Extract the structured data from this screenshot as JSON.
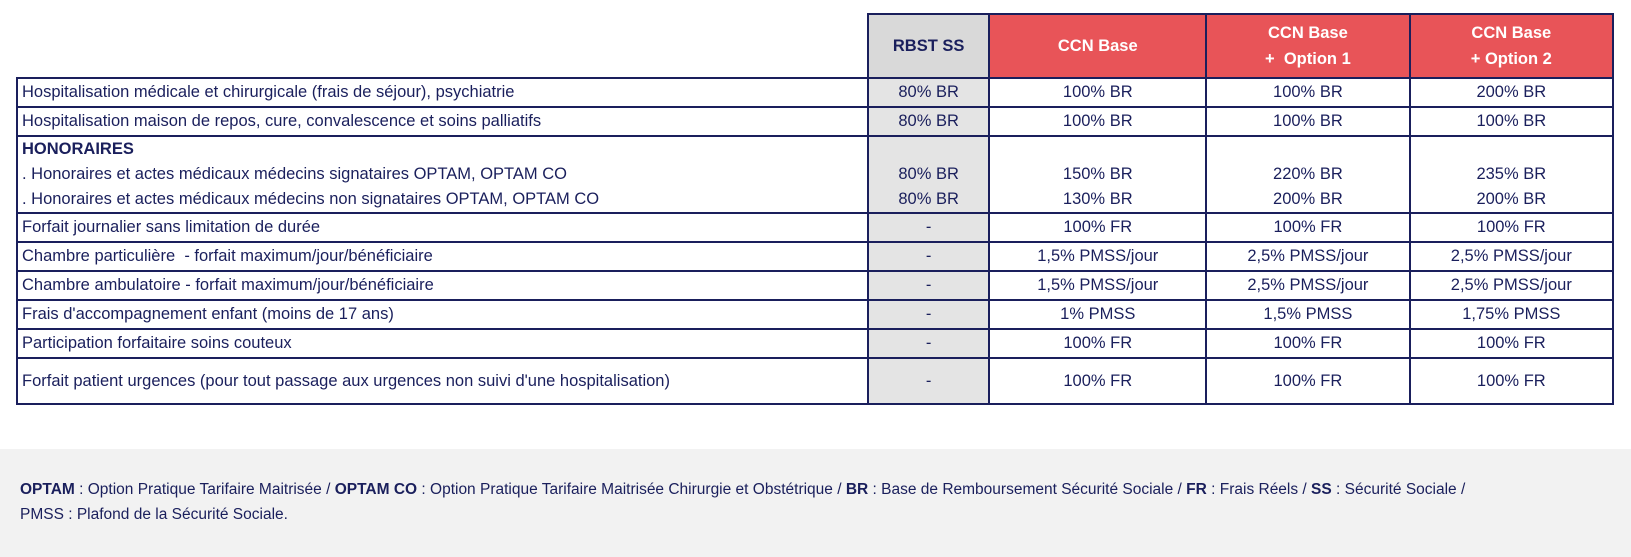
{
  "headers": {
    "rbst": "RBST SS",
    "ccn_base": "CCN Base",
    "ccn_opt1_line1": "CCN Base",
    "ccn_opt1_line2": "+  Option 1",
    "ccn_opt2_line1": "CCN Base",
    "ccn_opt2_line2": "+ Option 2"
  },
  "rows": [
    {
      "label": "Hospitalisation médicale et chirurgicale (frais de séjour), psychiatrie",
      "rbst": "80% BR",
      "base": "100% BR",
      "opt1": "100% BR",
      "opt2": "200% BR"
    },
    {
      "label": "Hospitalisation maison de repos, cure, convalescence et soins palliatifs",
      "rbst": "80% BR",
      "base": "100% BR",
      "opt1": "100% BR",
      "opt2": "100% BR"
    }
  ],
  "honoraires": {
    "title": "HONORAIRES",
    "line1": {
      "label": ". Honoraires et actes médicaux médecins signataires OPTAM, OPTAM CO",
      "rbst": "80% BR",
      "base": "150% BR",
      "opt1": "220% BR",
      "opt2": "235% BR"
    },
    "line2": {
      "label": ". Honoraires et actes médicaux médecins non signataires OPTAM, OPTAM CO",
      "rbst": "80% BR",
      "base": "130% BR",
      "opt1": "200% BR",
      "opt2": "200% BR"
    }
  },
  "rows2": [
    {
      "label": "Forfait journalier sans limitation de durée",
      "rbst": "-",
      "base": "100% FR",
      "opt1": "100% FR",
      "opt2": "100% FR"
    },
    {
      "label": "Chambre particulière  - forfait maximum/jour/bénéficiaire",
      "rbst": "-",
      "base": "1,5% PMSS/jour",
      "opt1": "2,5% PMSS/jour",
      "opt2": "2,5% PMSS/jour"
    },
    {
      "label": "Chambre ambulatoire - forfait maximum/jour/bénéficiaire",
      "rbst": "-",
      "base": "1,5% PMSS/jour",
      "opt1": "2,5% PMSS/jour",
      "opt2": "2,5% PMSS/jour"
    },
    {
      "label": "Frais d'accompagnement enfant (moins de 17 ans)",
      "rbst": "-",
      "base": "1% PMSS",
      "opt1": "1,5% PMSS",
      "opt2": "1,75% PMSS"
    },
    {
      "label": "Participation forfaitaire soins couteux",
      "rbst": "-",
      "base": "100% FR",
      "opt1": "100% FR",
      "opt2": "100% FR"
    },
    {
      "label": "Forfait patient urgences (pour tout passage aux urgences non suivi d'une hospitalisation)",
      "rbst": "-",
      "base": "100% FR",
      "opt1": "100% FR",
      "opt2": "100% FR"
    }
  ],
  "footer": {
    "t1": "OPTAM",
    "d1": " : Option Pratique Tarifaire Maitrisée / ",
    "t2": "OPTAM CO",
    "d2": " : Option Pratique Tarifaire Maitrisée Chirurgie et Obstétrique / ",
    "t3": "BR",
    "d3": " : Base de Remboursement Sécurité Sociale / ",
    "t4": "FR",
    "d4": " : Frais Réels / ",
    "t5": "SS",
    "d5": " : Sécurité Sociale / ",
    "d6": "PMSS : Plafond de la Sécurité Sociale."
  },
  "colors": {
    "navy": "#1a1f5c",
    "ccn_red": "#e85458",
    "rbst_grey": "#d9d9d9",
    "footer_bg": "#f2f2f2"
  }
}
